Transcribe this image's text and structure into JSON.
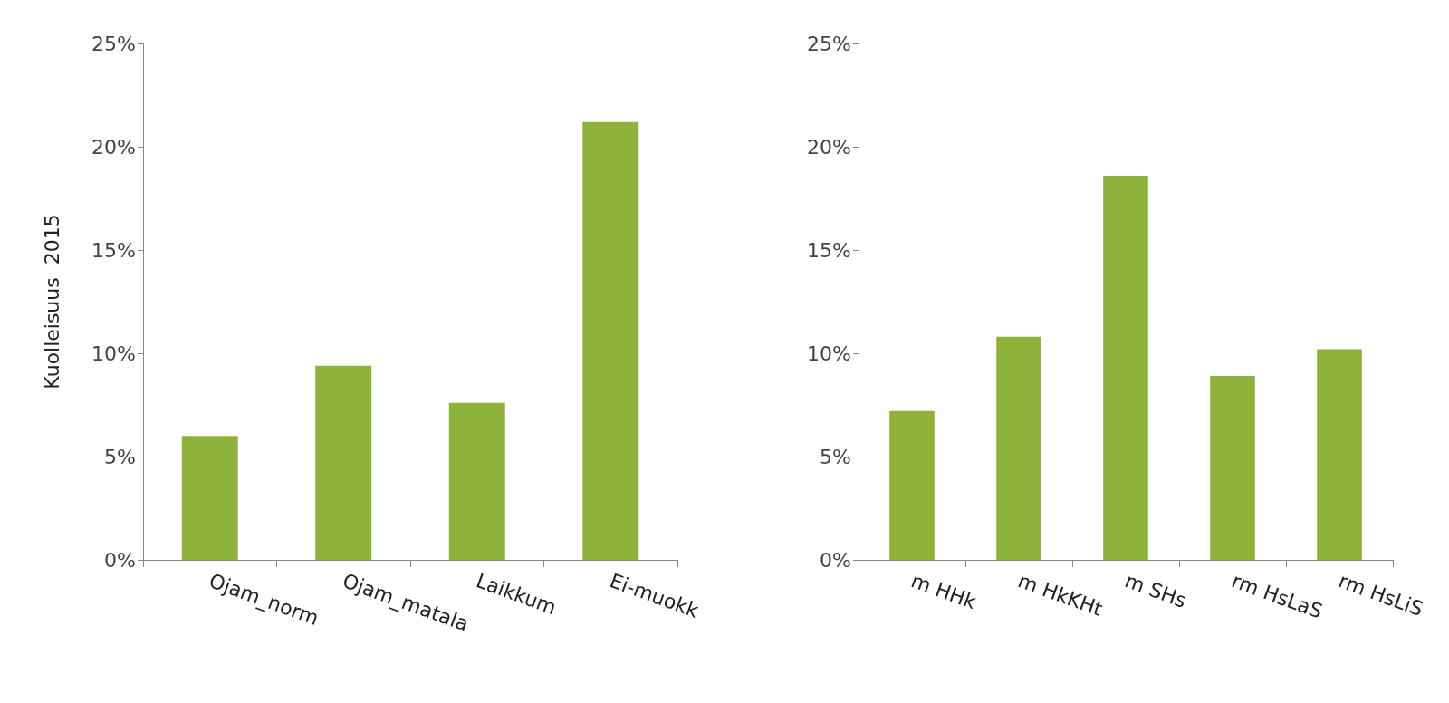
{
  "chart_data": [
    {
      "type": "bar",
      "ylabel": "Kuolleisuus  2015",
      "categories": [
        "Ojam_norm",
        "Ojam_matala",
        "Laikkum",
        "Ei-muokk"
      ],
      "values": [
        6.0,
        9.4,
        7.6,
        21.2
      ],
      "color": "#8db33a",
      "ylim": [
        0,
        25
      ],
      "yticks": [
        {
          "value": 0,
          "label": "0%"
        },
        {
          "value": 5,
          "label": "5%"
        },
        {
          "value": 10,
          "label": "10%"
        },
        {
          "value": 15,
          "label": "15%"
        },
        {
          "value": 20,
          "label": "20%"
        },
        {
          "value": 25,
          "label": "25%"
        }
      ],
      "grid": false
    },
    {
      "type": "bar",
      "categories": [
        "m HHk",
        "m HkKHt",
        "m SHs",
        "rm HsLaS",
        "rm HsLiS"
      ],
      "values": [
        7.2,
        10.8,
        18.6,
        8.9,
        10.2
      ],
      "color": "#8db33a",
      "ylim": [
        0,
        25
      ],
      "yticks": [
        {
          "value": 0,
          "label": "0%"
        },
        {
          "value": 5,
          "label": "5%"
        },
        {
          "value": 10,
          "label": "10%"
        },
        {
          "value": 15,
          "label": "15%"
        },
        {
          "value": 20,
          "label": "20%"
        },
        {
          "value": 25,
          "label": "25%"
        }
      ],
      "grid": false
    }
  ]
}
